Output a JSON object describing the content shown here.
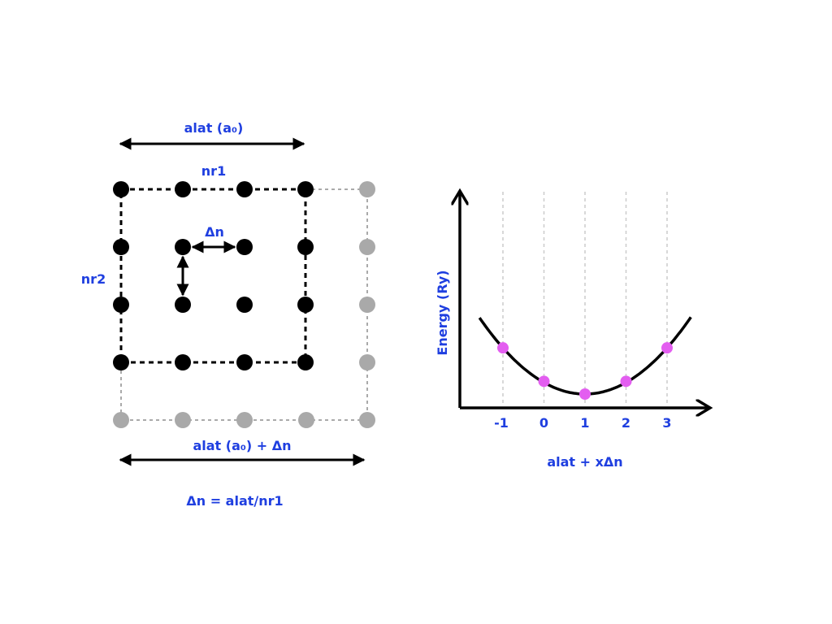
{
  "colors": {
    "label": "#1f3fe0",
    "dot_black": "#000000",
    "dot_gray": "#a9a9a9",
    "marker": "#e35ef0",
    "guide": "#cccccc"
  },
  "lattice": {
    "label_alat": "alat (a₀)",
    "label_nr1": "nr1",
    "label_nr2": "nr2",
    "label_dn": "Δn",
    "label_alat_dn": "alat (a₀) + Δn",
    "formula": "Δn = alat/nr1"
  },
  "chart_data": {
    "type": "scatter",
    "ylabel": "Energy (Ry)",
    "xlabel": "alat + xΔn",
    "x_ticks": [
      "-1",
      "0",
      "1",
      "2",
      "3"
    ],
    "x": [
      -1,
      0,
      1,
      2,
      3
    ],
    "y_relative": [
      0.58,
      0.16,
      0.0,
      0.16,
      0.58
    ],
    "curve": "parabola",
    "grid": "vertical dashed lines at ticks"
  }
}
